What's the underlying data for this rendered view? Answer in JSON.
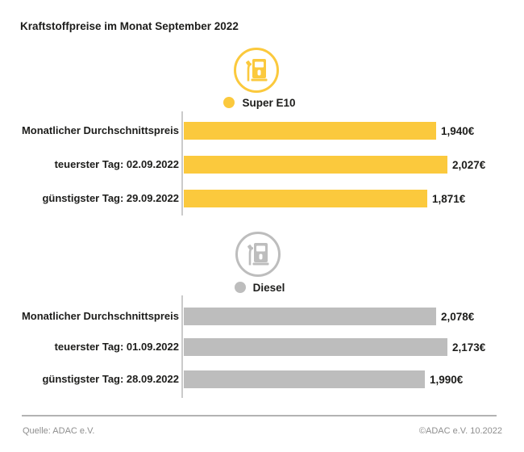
{
  "title": "Kraftstoffpreise im Monat September 2022",
  "footer": {
    "source": "Quelle: ADAC e.V.",
    "copyright": "©ADAC e.V. 10.2022"
  },
  "colors": {
    "super_e10_yellow": "#FBC93D",
    "diesel_gray": "#BDBDBD",
    "text_dark": "#1D1D1B",
    "axis_gray": "#CBCBCB",
    "footer_gray": "#8E8E8E"
  },
  "chart_data": [
    {
      "type": "bar",
      "orientation": "horizontal",
      "group": "Super E10",
      "icon": "fuel-pump-icon",
      "color": "#FBC93D",
      "legend_position": "top-center",
      "categories": [
        "Monatlicher Durchschnittspreis",
        "teuerster Tag: 02.09.2022",
        "günstigster Tag: 29.09.2022"
      ],
      "values": [
        1.94,
        2.027,
        1.871
      ],
      "value_labels": [
        "1,940€",
        "2,027€",
        "1,871€"
      ],
      "unit": "€",
      "xlim": [
        0,
        2.027
      ],
      "grid": false
    },
    {
      "type": "bar",
      "orientation": "horizontal",
      "group": "Diesel",
      "icon": "fuel-pump-icon",
      "color": "#BDBDBD",
      "legend_position": "top-center",
      "categories": [
        "Monatlicher Durchschnittspreis",
        "teuerster Tag: 01.09.2022",
        "günstigster Tag: 28.09.2022"
      ],
      "values": [
        2.078,
        2.173,
        1.99
      ],
      "value_labels": [
        "2,078€",
        "2,173€",
        "1,990€"
      ],
      "unit": "€",
      "xlim": [
        0,
        2.173
      ],
      "grid": false
    }
  ]
}
